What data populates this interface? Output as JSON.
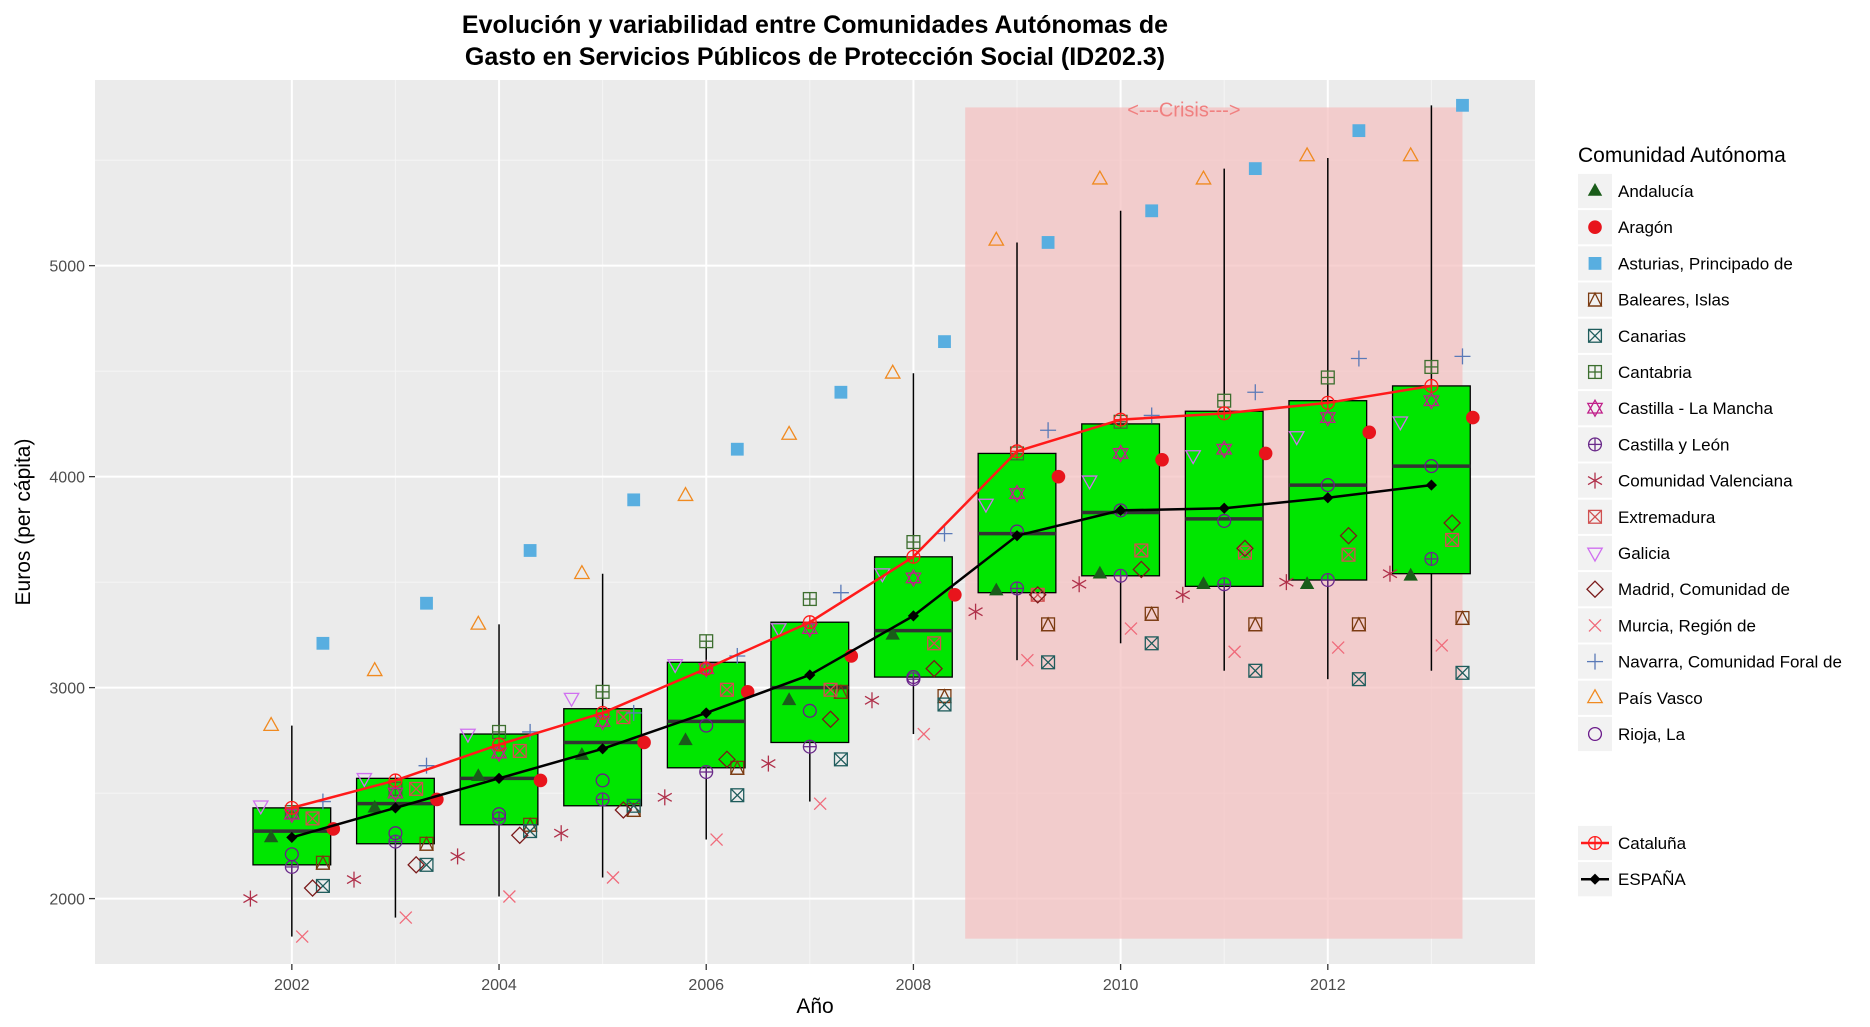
{
  "chart_data": {
    "type": "box",
    "title_line1": "Evolución y variabilidad entre Comunidades Autónomas de",
    "title_line2": "Gasto en Servicios Públicos de Protección Social (ID202.3)",
    "xlabel": "Año",
    "ylabel": "Euros (per cápita)",
    "xlim": [
      2000.1,
      2014.0
    ],
    "ylim": [
      1690,
      5880
    ],
    "x_ticks": [
      2002,
      2004,
      2006,
      2008,
      2010,
      2012
    ],
    "y_ticks": [
      2000,
      3000,
      4000,
      5000
    ],
    "grid": true,
    "background": "#ebebeb",
    "box_fill": "#00e600",
    "crisis": {
      "label": "<---Crisis--->",
      "x_start": 2008.5,
      "x_end": 2013.3,
      "y_start": 1810,
      "y_end": 5750,
      "color": "#f4c2c2"
    },
    "boxplots": [
      {
        "x": 2002,
        "min": 1820,
        "q1": 2160,
        "median": 2320,
        "q3": 2430,
        "max": 2820
      },
      {
        "x": 2003,
        "min": 1910,
        "q1": 2260,
        "median": 2450,
        "q3": 2570,
        "max": 2570
      },
      {
        "x": 2004,
        "min": 2010,
        "q1": 2350,
        "median": 2570,
        "q3": 2780,
        "max": 3300
      },
      {
        "x": 2005,
        "min": 2100,
        "q1": 2440,
        "median": 2740,
        "q3": 2900,
        "max": 3540
      },
      {
        "x": 2006,
        "min": 2280,
        "q1": 2620,
        "median": 2840,
        "q3": 3120,
        "max": 3220
      },
      {
        "x": 2007,
        "min": 2460,
        "q1": 2740,
        "median": 3000,
        "q3": 3310,
        "max": 3310
      },
      {
        "x": 2008,
        "min": 2780,
        "q1": 3050,
        "median": 3270,
        "q3": 3620,
        "max": 4490
      },
      {
        "x": 2009,
        "min": 3130,
        "q1": 3450,
        "median": 3730,
        "q3": 4110,
        "max": 5110
      },
      {
        "x": 2010,
        "min": 3210,
        "q1": 3530,
        "median": 3830,
        "q3": 4250,
        "max": 5260
      },
      {
        "x": 2011,
        "min": 3080,
        "q1": 3480,
        "median": 3800,
        "q3": 4310,
        "max": 5460
      },
      {
        "x": 2012,
        "min": 3040,
        "q1": 3510,
        "median": 3960,
        "q3": 4360,
        "max": 5510
      },
      {
        "x": 2013,
        "min": 3080,
        "q1": 3540,
        "median": 4050,
        "q3": 4430,
        "max": 5760
      }
    ],
    "series": [
      {
        "name": "Andalucía",
        "shape": "triangle",
        "color": "#1a5c1a",
        "offset": -0.2,
        "values": [
          2290,
          2430,
          2580,
          2680,
          2750,
          2940,
          3250,
          3460,
          3540,
          3490,
          3490,
          3530
        ]
      },
      {
        "name": "Aragón",
        "shape": "dot",
        "color": "#e8141c",
        "offset": 0.4,
        "values": [
          2330,
          2470,
          2560,
          2740,
          2980,
          3150,
          3440,
          4000,
          4080,
          4110,
          4210,
          4280
        ]
      },
      {
        "name": "Asturias, Principado de",
        "shape": "square",
        "color": "#58aee0",
        "offset": 0.3,
        "values": [
          3210,
          3400,
          3650,
          3890,
          4130,
          4400,
          4640,
          5110,
          5260,
          5460,
          5640,
          5760
        ]
      },
      {
        "name": "Baleares, Islas",
        "shape": "square-tri",
        "color": "#7a3a10",
        "offset": 0.3,
        "values": [
          2170,
          2260,
          2350,
          2420,
          2620,
          2980,
          2960,
          3300,
          3350,
          3300,
          3300,
          3330
        ]
      },
      {
        "name": "Canarias",
        "shape": "square-x",
        "color": "#1f5c5c",
        "offset": 0.3,
        "values": [
          2060,
          2160,
          2320,
          2440,
          2490,
          2660,
          2920,
          3120,
          3210,
          3080,
          3040,
          3070
        ]
      },
      {
        "name": "Cantabria",
        "shape": "square-plus",
        "color": "#3c6e2e",
        "offset": 0.0,
        "values": [
          2410,
          2520,
          2790,
          2980,
          3220,
          3420,
          3690,
          4110,
          4260,
          4360,
          4470,
          4520
        ]
      },
      {
        "name": "Castilla - La Mancha",
        "shape": "star6",
        "color": "#c0208a",
        "offset": 0.0,
        "values": [
          2400,
          2500,
          2690,
          2840,
          3090,
          3280,
          3520,
          3920,
          4110,
          4130,
          4280,
          4360
        ]
      },
      {
        "name": "Castilla y León",
        "shape": "circle-plus",
        "color": "#6a2a8a",
        "offset": 0.0,
        "values": [
          2150,
          2270,
          2380,
          2470,
          2600,
          2720,
          3040,
          3470,
          3530,
          3490,
          3510,
          3610
        ]
      },
      {
        "name": "Comunidad Valenciana",
        "shape": "asterisk",
        "color": "#b0304a",
        "offset": -0.4,
        "values": [
          2000,
          2090,
          2200,
          2310,
          2480,
          2640,
          2940,
          3360,
          3490,
          3440,
          3500,
          3540
        ]
      },
      {
        "name": "Extremadura",
        "shape": "square-x",
        "color": "#d05050",
        "offset": 0.2,
        "values": [
          2380,
          2520,
          2700,
          2860,
          2990,
          2990,
          3210,
          3440,
          3650,
          3640,
          3630,
          3700
        ]
      },
      {
        "name": "Galicia",
        "shape": "triangle-down",
        "color": "#d070f0",
        "offset": -0.3,
        "values": [
          2440,
          2570,
          2780,
          2950,
          3110,
          3280,
          3540,
          3870,
          3980,
          4100,
          4190,
          4260
        ]
      },
      {
        "name": "Madrid, Comunidad de",
        "shape": "diamond",
        "color": "#7a1a1a",
        "offset": 0.2,
        "values": [
          2050,
          2160,
          2300,
          2420,
          2660,
          2850,
          3090,
          3440,
          3560,
          3660,
          3720,
          3780
        ]
      },
      {
        "name": "Murcia, Región de",
        "shape": "x",
        "color": "#f06a7a",
        "offset": 0.1,
        "values": [
          1820,
          1910,
          2010,
          2100,
          2280,
          2450,
          2780,
          3130,
          3280,
          3170,
          3190,
          3200
        ]
      },
      {
        "name": "Navarra, Comunidad Foral de",
        "shape": "plus",
        "color": "#5a7ab8",
        "offset": 0.3,
        "values": [
          2460,
          2630,
          2790,
          2880,
          3150,
          3450,
          3730,
          4220,
          4290,
          4400,
          4560,
          4570
        ]
      },
      {
        "name": "País Vasco",
        "shape": "triangle-open",
        "color": "#f08a20",
        "offset": -0.2,
        "values": [
          2820,
          3080,
          3300,
          3540,
          3910,
          4200,
          4490,
          5120,
          5410,
          5410,
          5520,
          5520
        ]
      },
      {
        "name": "Rioja, La",
        "shape": "circle-open",
        "color": "#6a1a8a",
        "offset": 0.0,
        "values": [
          2210,
          2310,
          2400,
          2560,
          2820,
          2890,
          3050,
          3740,
          3840,
          3790,
          3960,
          4050
        ]
      }
    ],
    "lines": [
      {
        "name": "Cataluña",
        "color": "#ff1a1a",
        "values": [
          2430,
          2560,
          2730,
          2880,
          3090,
          3310,
          3620,
          4120,
          4270,
          4300,
          4350,
          4430
        ]
      },
      {
        "name": "ESPAÑA",
        "color": "#000000",
        "values": [
          2290,
          2430,
          2570,
          2710,
          2880,
          3060,
          3340,
          3720,
          3840,
          3850,
          3900,
          3960
        ]
      }
    ],
    "legend": {
      "title": "Comunidad Autónoma",
      "position": "right"
    }
  }
}
